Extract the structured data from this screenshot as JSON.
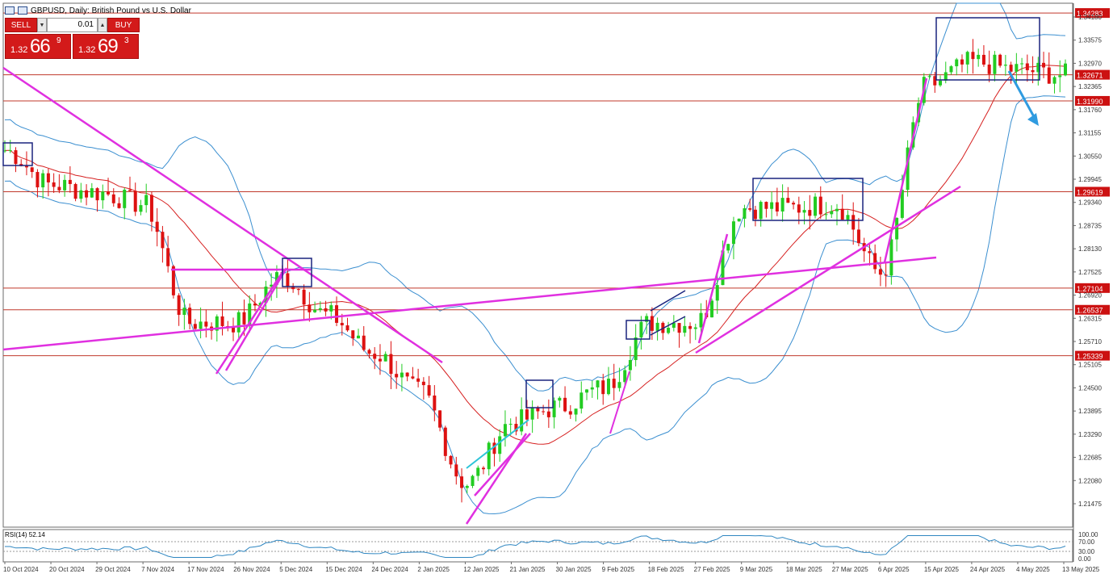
{
  "window": {
    "title": "GBPUSD, Daily:  British Pound vs U.S. Dollar"
  },
  "trade_panel": {
    "sell_label": "SELL",
    "buy_label": "BUY",
    "lot_value": "0.01",
    "spin_down": "▼",
    "spin_up": "▲",
    "sell_price": {
      "prefix": "1.32",
      "big": "66",
      "sup": "9"
    },
    "buy_price": {
      "prefix": "1.32",
      "big": "69",
      "sup": "3"
    }
  },
  "colors": {
    "bull": "#22cc22",
    "bear": "#dd1111",
    "bollinger": "#3b8fd0",
    "ma": "#d62020",
    "trendline": "#e030e0",
    "hline": "#c0392b",
    "box": "#1a237e",
    "arrow": "#2f9be0",
    "cyan": "#2ec4d8",
    "price_label_bg": "#cc1111",
    "rsi": "#2e86c1"
  },
  "chart_data": {
    "type": "candlestick",
    "symbol": "GBPUSD",
    "timeframe": "Daily",
    "title": "GBPUSD, Daily:  British Pound vs U.S. Dollar",
    "ylim": [
      1.2062,
      1.3466
    ],
    "y_ticks": [
      "1.34180",
      "1.33575",
      "1.32970",
      "1.32365",
      "1.31760",
      "1.31155",
      "1.30550",
      "1.29945",
      "1.29340",
      "1.28735",
      "1.28130",
      "1.27525",
      "1.26920",
      "1.26315",
      "1.25710",
      "1.25105",
      "1.24500",
      "1.23895",
      "1.23290",
      "1.22685",
      "1.22080",
      "1.21475"
    ],
    "x_labels": [
      "10 Oct 2024",
      "20 Oct 2024",
      "29 Oct 2024",
      "7 Nov 2024",
      "17 Nov 2024",
      "26 Nov 2024",
      "5 Dec 2024",
      "15 Dec 2024",
      "24 Dec 2024",
      "2 Jan 2025",
      "12 Jan 2025",
      "21 Jan 2025",
      "30 Jan 2025",
      "9 Feb 2025",
      "18 Feb 2025",
      "27 Feb 2025",
      "9 Mar 2025",
      "18 Mar 2025",
      "27 Mar 2025",
      "6 Apr 2025",
      "15 Apr 2025",
      "24 Apr 2025",
      "4 May 2025",
      "13 May 2025"
    ],
    "horizontal_levels": [
      "1.34283",
      "1.32671",
      "1.31990",
      "1.29619",
      "1.27104",
      "1.26537",
      "1.25339"
    ],
    "current_price_tag": "1.32671",
    "rsi": {
      "label": "RSI(14) 52.14",
      "period": 14,
      "value": 52.14,
      "y_ticks": [
        "100.00",
        "70.00",
        "30.00",
        "0.00"
      ],
      "levels": [
        70,
        30
      ]
    },
    "series_keypoints": [
      {
        "date": "10 Oct 2024",
        "close": 1.307
      },
      {
        "date": "20 Oct 2024",
        "close": 1.298
      },
      {
        "date": "29 Oct 2024",
        "close": 1.296
      },
      {
        "date": "7 Nov 2024",
        "close": 1.293
      },
      {
        "date": "17 Nov 2024",
        "close": 1.262
      },
      {
        "date": "26 Nov 2024",
        "close": 1.262
      },
      {
        "date": "5 Dec 2024",
        "close": 1.274
      },
      {
        "date": "15 Dec 2024",
        "close": 1.264
      },
      {
        "date": "24 Dec 2024",
        "close": 1.254
      },
      {
        "date": "2 Jan 2025",
        "close": 1.244
      },
      {
        "date": "12 Jan 2025",
        "close": 1.22
      },
      {
        "date": "21 Jan 2025",
        "close": 1.236
      },
      {
        "date": "30 Jan 2025",
        "close": 1.24
      },
      {
        "date": "9 Feb 2025",
        "close": 1.245
      },
      {
        "date": "18 Feb 2025",
        "close": 1.262
      },
      {
        "date": "27 Feb 2025",
        "close": 1.262
      },
      {
        "date": "9 Mar 2025",
        "close": 1.292
      },
      {
        "date": "18 Mar 2025",
        "close": 1.292
      },
      {
        "date": "27 Mar 2025",
        "close": 1.293
      },
      {
        "date": "6 Apr 2025",
        "close": 1.275
      },
      {
        "date": "15 Apr 2025",
        "close": 1.324
      },
      {
        "date": "24 Apr 2025",
        "close": 1.33
      },
      {
        "date": "4 May 2025",
        "close": 1.328
      },
      {
        "date": "13 May 2025",
        "close": 1.3267
      }
    ],
    "grid": false,
    "legend": "none"
  }
}
